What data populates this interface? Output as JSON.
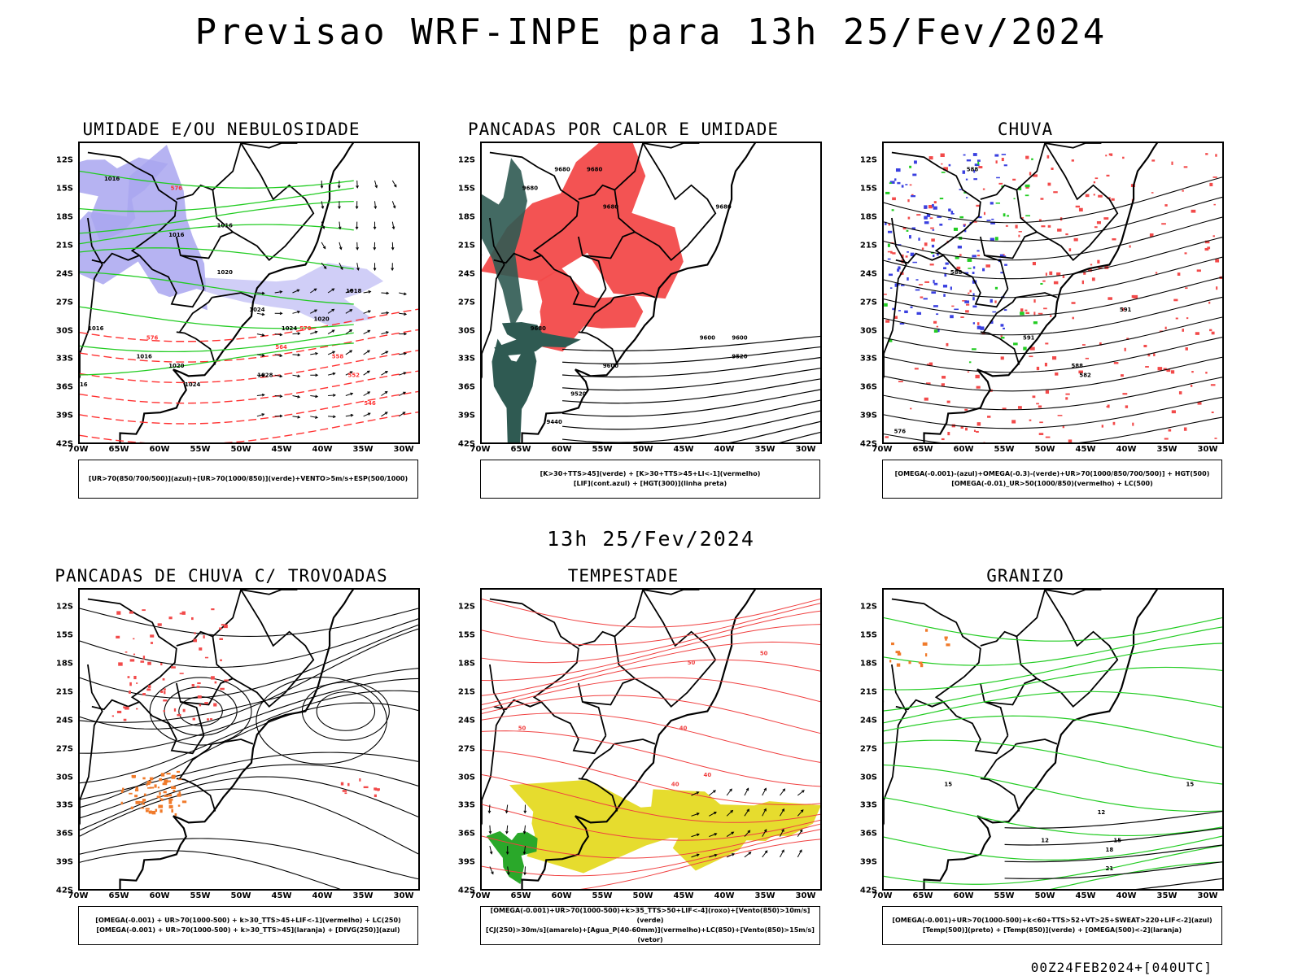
{
  "title": "Previsao WRF-INPE  para 13h 25/Fev/2024",
  "subtitle": "13h 25/Fev/2024",
  "footer": "00Z24FEB2024+[040UTC]",
  "lat_labels": [
    "12S",
    "15S",
    "18S",
    "21S",
    "24S",
    "27S",
    "30S",
    "33S",
    "36S",
    "39S",
    "42S"
  ],
  "lon_labels": [
    "70W",
    "65W",
    "60W",
    "55W",
    "50W",
    "45W",
    "40W",
    "35W",
    "30W"
  ],
  "colors": {
    "blue_shade": "#a9a6f0",
    "red_shade": "#f24a4a",
    "green_contour": "#22cc22",
    "dark_green_shade": "#2f5a52",
    "yellow_shade": "#e6dc2e",
    "orange_dots": "#f07a2a",
    "blue_contour": "#3a40e0"
  },
  "panels": [
    {
      "title": "UMIDADE E/OU NEBULOSIDADE",
      "legend": [
        "[UR>70(850/700/500)](azul)+[UR>70(1000/850)](verde)+VENTO>5m/s+ESP(500/1000)"
      ],
      "isobars": [
        "1016",
        "1016",
        "1016",
        "1020",
        "1024",
        "1028",
        "1016",
        "1020",
        "1024",
        "1018",
        "1016",
        "1016",
        "1020",
        "1024"
      ],
      "thickness": [
        "576",
        "570",
        "564",
        "558",
        "552",
        "546",
        "576"
      ]
    },
    {
      "title": "PANCADAS POR CALOR E UMIDADE",
      "legend": [
        "[K>30+TTS>45](verde) + [K>30+TTS>45+LI<-1](vermelho)",
        "[LIF](cont.azul) + [HGT(300)](linha preta)"
      ],
      "heights": [
        "9680",
        "9680",
        "9680",
        "9680",
        "9680",
        "9600",
        "9680",
        "9600",
        "9520",
        "9600",
        "9520",
        "9440"
      ]
    },
    {
      "title": "CHUVA",
      "legend": [
        "[OMEGA(-0.001)-(azul)+OMEGA(-0.3)-(verde)+UR>70(1000/850/700/500)] + HGT(500)",
        "[OMEGA(-0.01)_UR>50(1000/850)(vermelho) + LC(500)"
      ],
      "heights": [
        "588",
        "588",
        "591",
        "591",
        "588",
        "582",
        "576"
      ]
    },
    {
      "title": "PANCADAS DE CHUVA C/ TROVOADAS",
      "legend": [
        "[OMEGA(-0.001) + UR>70(1000-500) + k>30_TTS>45+LIF<-1](vermelho) + LC(250)",
        "[OMEGA(-0.001) + UR>70(1000-500) + k>30_TTS>45](laranja) + [DIVG(250)](azul)"
      ]
    },
    {
      "title": "TEMPESTADE",
      "legend": [
        "[OMEGA(-0.001)+UR>70(1000-500)+k>35_TTS>50+LIF<-4](roxo)+[Vento(850)>10m/s](verde)",
        "[CJ(250)>30m/s](amarelo)+[Agua_P(40-60mm)](vermelho)+LC(850)+[Vento(850)>15m/s](vetor)"
      ],
      "values": [
        "50",
        "50",
        "40",
        "40",
        "50",
        "40"
      ]
    },
    {
      "title": "GRANIZO",
      "legend": [
        "[OMEGA(-0.001)+UR>70(1000-500)+k<60+TTS>52+VT>25+SWEAT>220+LIF<-2](azul)",
        "[Temp(500)](preto) + [Temp(850)](verde) + [OMEGA(500)<-2](laranja)"
      ],
      "values": [
        "15",
        "12",
        "15",
        "18",
        "21",
        "12",
        "15"
      ]
    }
  ]
}
